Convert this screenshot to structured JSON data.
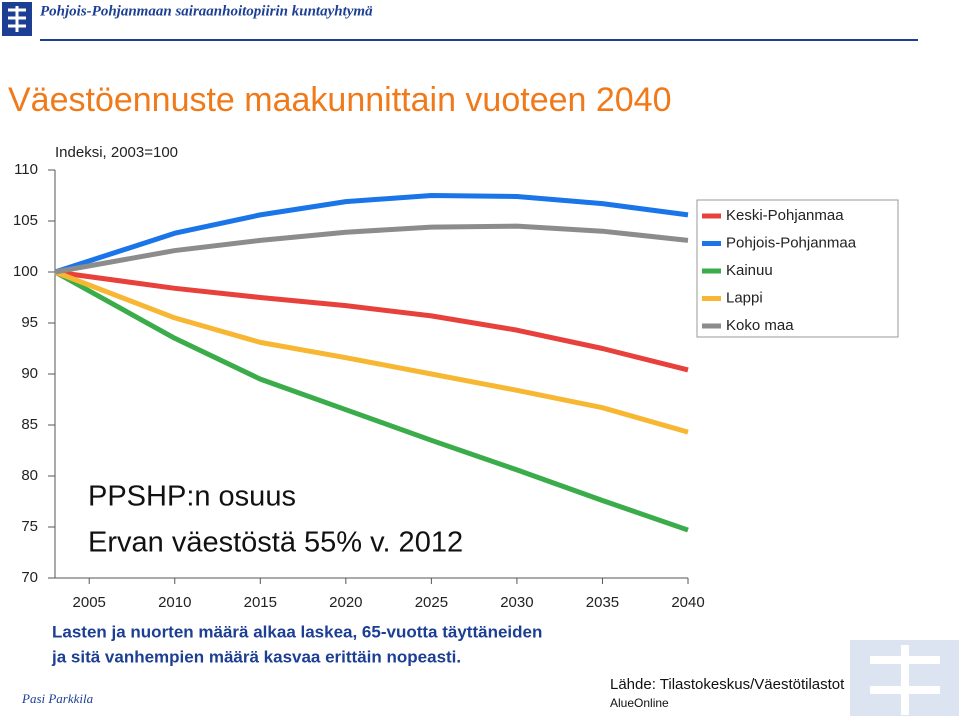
{
  "header": {
    "organization": "Pohjois-Pohjanmaan sairaanhoitopiirin kuntayhtymä",
    "title": "Väestöennuste maakunnittain vuoteen 2040"
  },
  "chart_data": {
    "type": "line",
    "ylabel": "Indeksi, 2003=100",
    "x": [
      2003,
      2010,
      2015,
      2020,
      2025,
      2030,
      2035,
      2040
    ],
    "series": [
      {
        "name": "Keski-Pohjanmaa",
        "color": "#e8413c",
        "values": [
          100,
          98.4,
          97.5,
          96.7,
          95.7,
          94.3,
          92.5,
          90.4
        ]
      },
      {
        "name": "Pohjois-Pohjanmaa",
        "color": "#1a75e8",
        "values": [
          100,
          103.8,
          105.6,
          106.9,
          107.5,
          107.4,
          106.7,
          105.6
        ]
      },
      {
        "name": "Kainuu",
        "color": "#3aad4a",
        "values": [
          100,
          93.5,
          89.5,
          86.5,
          83.5,
          80.6,
          77.6,
          74.7
        ]
      },
      {
        "name": "Lappi",
        "color": "#f7b733",
        "values": [
          100,
          95.5,
          93.1,
          91.6,
          90.0,
          88.4,
          86.7,
          84.3
        ]
      },
      {
        "name": "Koko maa",
        "color": "#8c8c8c",
        "values": [
          100,
          102.1,
          103.1,
          103.9,
          104.4,
          104.5,
          104.0,
          103.1
        ]
      }
    ],
    "xlim": [
      2003,
      2040
    ],
    "xticks": [
      2005,
      2010,
      2015,
      2020,
      2025,
      2030,
      2035,
      2040
    ],
    "ylim": [
      70,
      110
    ],
    "yticks": [
      70,
      75,
      80,
      85,
      90,
      95,
      100,
      105,
      110
    ],
    "grid": false,
    "legend": "upper right",
    "annotations": [
      "PPSHP:n osuus",
      "Ervan väestöstä 55% v. 2012"
    ]
  },
  "notes": [
    "Lasten ja nuorten määrä alkaa laskea, 65-vuotta täyttäneiden",
    "ja sitä vanhempien määrä kasvaa erittäin nopeasti."
  ],
  "footer": {
    "author": "Pasi Parkkila",
    "source": "Lähde: Tilastokeskus/Väestötilastot",
    "tool": "AlueOnline"
  }
}
